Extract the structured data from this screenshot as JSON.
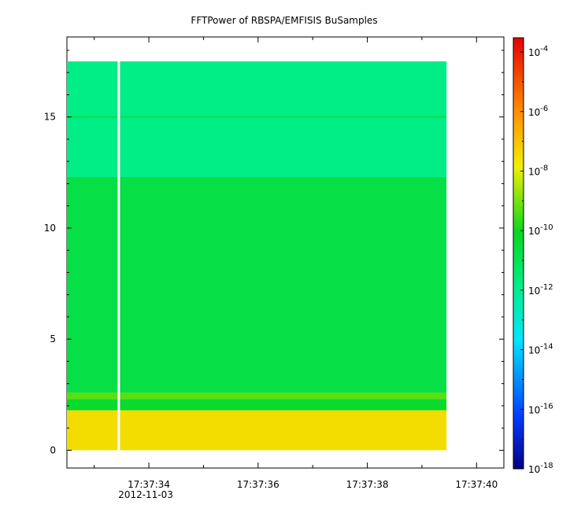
{
  "chart_data": {
    "type": "heatmap",
    "title": "FFTPower of RBSPA/EMFISIS  BuSamples",
    "xlabel": "",
    "ylabel": "",
    "x_ticks": [
      {
        "value": "17:37:34",
        "sublabel": "2012-11-03"
      },
      {
        "value": "17:37:36",
        "sublabel": ""
      },
      {
        "value": "17:37:38",
        "sublabel": ""
      },
      {
        "value": "17:37:40",
        "sublabel": ""
      }
    ],
    "x_range": [
      "17:37:32.5",
      "17:37:40.5"
    ],
    "data_x_range": [
      "17:37:32.5",
      "17:37:39.45"
    ],
    "gap_x": "17:37:33.45",
    "ylim": [
      -0.8,
      18.6
    ],
    "y_ticks": [
      0,
      5,
      10,
      15
    ],
    "data_y_range": [
      0,
      17.5
    ],
    "colorbar": {
      "scale": "log",
      "range": [
        1e-18,
        0.0003
      ],
      "tick_base": "10",
      "tick_exponents": [
        "-4",
        "-6",
        "-8",
        "-10",
        "-12",
        "-14",
        "-16",
        "-18"
      ]
    },
    "bands": [
      {
        "y_range": [
          0,
          1.8
        ],
        "log10_power": -7.5
      },
      {
        "y_range": [
          1.8,
          2.3
        ],
        "log10_power": -10.3
      },
      {
        "y_range": [
          2.3,
          2.6
        ],
        "log10_power": -9.3
      },
      {
        "y_range": [
          2.6,
          12.3
        ],
        "log10_power": -10.7
      },
      {
        "y_range": [
          12.3,
          17.5
        ],
        "log10_power": -11.8
      }
    ],
    "line_features": [
      {
        "y": 15.0,
        "log10_power": -10.8
      }
    ]
  }
}
